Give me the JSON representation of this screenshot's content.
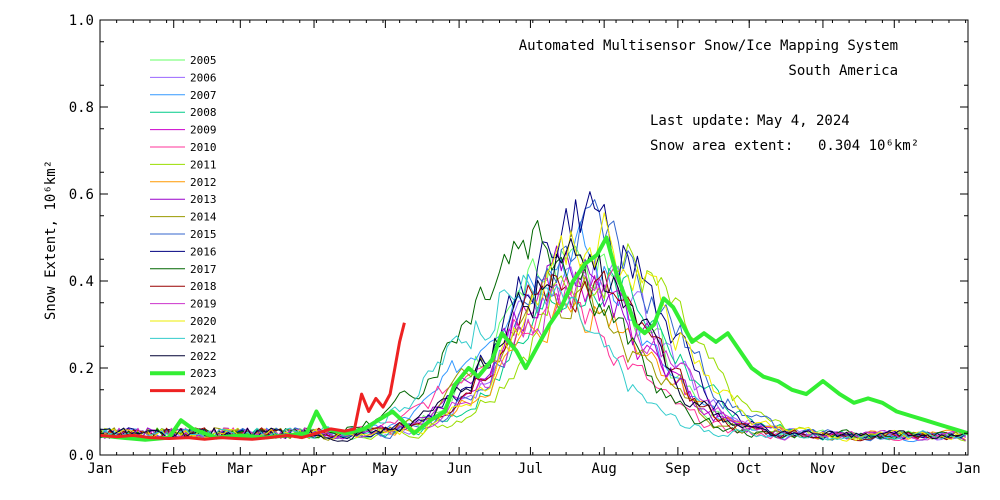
{
  "chart_data": {
    "type": "line",
    "title": "Automated  Multisensor Snow/Ice Mapping System",
    "subtitle": "South America",
    "last_update_label": "Last update:",
    "last_update_value": "May  4, 2024",
    "extent_label": "Snow area extent:",
    "extent_value": "0.304 10⁶km²",
    "ylabel": "Snow Extent, 10⁶km²",
    "xlabel": "",
    "ylim": [
      0,
      1.0
    ],
    "yticks": [
      "0.0",
      "0.2",
      "0.4",
      "0.6",
      "0.8",
      "1.0"
    ],
    "xlim": [
      1,
      366
    ],
    "xticks": [
      {
        "label": "Jan",
        "day": 1
      },
      {
        "label": "Feb",
        "day": 32
      },
      {
        "label": "Mar",
        "day": 60
      },
      {
        "label": "Apr",
        "day": 91
      },
      {
        "label": "May",
        "day": 121
      },
      {
        "label": "Jun",
        "day": 152
      },
      {
        "label": "Jul",
        "day": 182
      },
      {
        "label": "Aug",
        "day": 213
      },
      {
        "label": "Sep",
        "day": 244
      },
      {
        "label": "Oct",
        "day": 274
      },
      {
        "label": "Nov",
        "day": 305
      },
      {
        "label": "Dec",
        "day": 335
      },
      {
        "label": "Jan",
        "day": 366
      }
    ],
    "grid": false,
    "legend_position": "top-left",
    "series": [
      {
        "name": "2005",
        "color": "#66ff66",
        "width": 1,
        "peak_day": 200,
        "peak": 0.55,
        "seed": 1
      },
      {
        "name": "2006",
        "color": "#9966ff",
        "width": 1,
        "peak_day": 205,
        "peak": 0.5,
        "seed": 2
      },
      {
        "name": "2007",
        "color": "#3399ff",
        "width": 1,
        "peak_day": 195,
        "peak": 0.6,
        "seed": 3
      },
      {
        "name": "2008",
        "color": "#00cc88",
        "width": 1,
        "peak_day": 210,
        "peak": 0.48,
        "seed": 4
      },
      {
        "name": "2009",
        "color": "#cc00cc",
        "width": 1,
        "peak_day": 200,
        "peak": 0.45,
        "seed": 5
      },
      {
        "name": "2010",
        "color": "#ff3399",
        "width": 1,
        "peak_day": 190,
        "peak": 0.42,
        "seed": 6
      },
      {
        "name": "2011",
        "color": "#99dd00",
        "width": 1,
        "peak_day": 215,
        "peak": 0.55,
        "seed": 7
      },
      {
        "name": "2012",
        "color": "#ff9900",
        "width": 1,
        "peak_day": 205,
        "peak": 0.4,
        "seed": 8
      },
      {
        "name": "2013",
        "color": "#9900cc",
        "width": 1,
        "peak_day": 200,
        "peak": 0.5,
        "seed": 9
      },
      {
        "name": "2014",
        "color": "#999900",
        "width": 1,
        "peak_day": 195,
        "peak": 0.45,
        "seed": 10
      },
      {
        "name": "2015",
        "color": "#3366cc",
        "width": 1,
        "peak_day": 210,
        "peak": 0.62,
        "seed": 11
      },
      {
        "name": "2016",
        "color": "#000080",
        "width": 1,
        "peak_day": 205,
        "peak": 0.66,
        "seed": 12
      },
      {
        "name": "2017",
        "color": "#006600",
        "width": 1,
        "peak_day": 185,
        "peak": 0.64,
        "seed": 13
      },
      {
        "name": "2018",
        "color": "#990000",
        "width": 1,
        "peak_day": 200,
        "peak": 0.48,
        "seed": 14
      },
      {
        "name": "2019",
        "color": "#cc33cc",
        "width": 1,
        "peak_day": 205,
        "peak": 0.46,
        "seed": 15
      },
      {
        "name": "2020",
        "color": "#eeee00",
        "width": 1,
        "peak_day": 210,
        "peak": 0.6,
        "seed": 16
      },
      {
        "name": "2021",
        "color": "#33cccc",
        "width": 1,
        "peak_day": 180,
        "peak": 0.45,
        "seed": 17
      },
      {
        "name": "2022",
        "color": "#000033",
        "width": 1,
        "peak_day": 200,
        "peak": 0.52,
        "seed": 18
      },
      {
        "name": "2023",
        "color": "#33ee33",
        "width": 4,
        "points": [
          [
            1,
            0.045
          ],
          [
            10,
            0.04
          ],
          [
            20,
            0.035
          ],
          [
            30,
            0.04
          ],
          [
            35,
            0.08
          ],
          [
            40,
            0.06
          ],
          [
            50,
            0.04
          ],
          [
            60,
            0.045
          ],
          [
            70,
            0.04
          ],
          [
            80,
            0.045
          ],
          [
            88,
            0.05
          ],
          [
            92,
            0.1
          ],
          [
            96,
            0.06
          ],
          [
            105,
            0.05
          ],
          [
            112,
            0.06
          ],
          [
            118,
            0.08
          ],
          [
            124,
            0.1
          ],
          [
            128,
            0.08
          ],
          [
            133,
            0.05
          ],
          [
            140,
            0.08
          ],
          [
            146,
            0.1
          ],
          [
            150,
            0.16
          ],
          [
            156,
            0.2
          ],
          [
            160,
            0.18
          ],
          [
            166,
            0.22
          ],
          [
            170,
            0.28
          ],
          [
            176,
            0.24
          ],
          [
            180,
            0.2
          ],
          [
            186,
            0.26
          ],
          [
            190,
            0.3
          ],
          [
            195,
            0.34
          ],
          [
            200,
            0.4
          ],
          [
            205,
            0.44
          ],
          [
            210,
            0.46
          ],
          [
            214,
            0.5
          ],
          [
            218,
            0.42
          ],
          [
            222,
            0.36
          ],
          [
            226,
            0.3
          ],
          [
            230,
            0.28
          ],
          [
            234,
            0.3
          ],
          [
            238,
            0.36
          ],
          [
            242,
            0.34
          ],
          [
            246,
            0.3
          ],
          [
            250,
            0.26
          ],
          [
            255,
            0.28
          ],
          [
            260,
            0.26
          ],
          [
            265,
            0.28
          ],
          [
            270,
            0.24
          ],
          [
            275,
            0.2
          ],
          [
            280,
            0.18
          ],
          [
            286,
            0.17
          ],
          [
            292,
            0.15
          ],
          [
            298,
            0.14
          ],
          [
            305,
            0.17
          ],
          [
            312,
            0.14
          ],
          [
            318,
            0.12
          ],
          [
            324,
            0.13
          ],
          [
            330,
            0.12
          ],
          [
            336,
            0.1
          ],
          [
            342,
            0.09
          ],
          [
            348,
            0.08
          ],
          [
            354,
            0.07
          ],
          [
            360,
            0.06
          ],
          [
            366,
            0.05
          ]
        ]
      },
      {
        "name": "2024",
        "color": "#ee2222",
        "width": 3,
        "points": [
          [
            1,
            0.045
          ],
          [
            8,
            0.042
          ],
          [
            15,
            0.045
          ],
          [
            22,
            0.04
          ],
          [
            30,
            0.038
          ],
          [
            38,
            0.04
          ],
          [
            45,
            0.036
          ],
          [
            52,
            0.04
          ],
          [
            58,
            0.038
          ],
          [
            65,
            0.036
          ],
          [
            72,
            0.04
          ],
          [
            80,
            0.045
          ],
          [
            86,
            0.04
          ],
          [
            92,
            0.05
          ],
          [
            98,
            0.06
          ],
          [
            104,
            0.055
          ],
          [
            108,
            0.06
          ],
          [
            111,
            0.14
          ],
          [
            114,
            0.1
          ],
          [
            117,
            0.13
          ],
          [
            120,
            0.11
          ],
          [
            123,
            0.14
          ],
          [
            125,
            0.2
          ],
          [
            127,
            0.26
          ],
          [
            129,
            0.304
          ]
        ]
      }
    ]
  }
}
